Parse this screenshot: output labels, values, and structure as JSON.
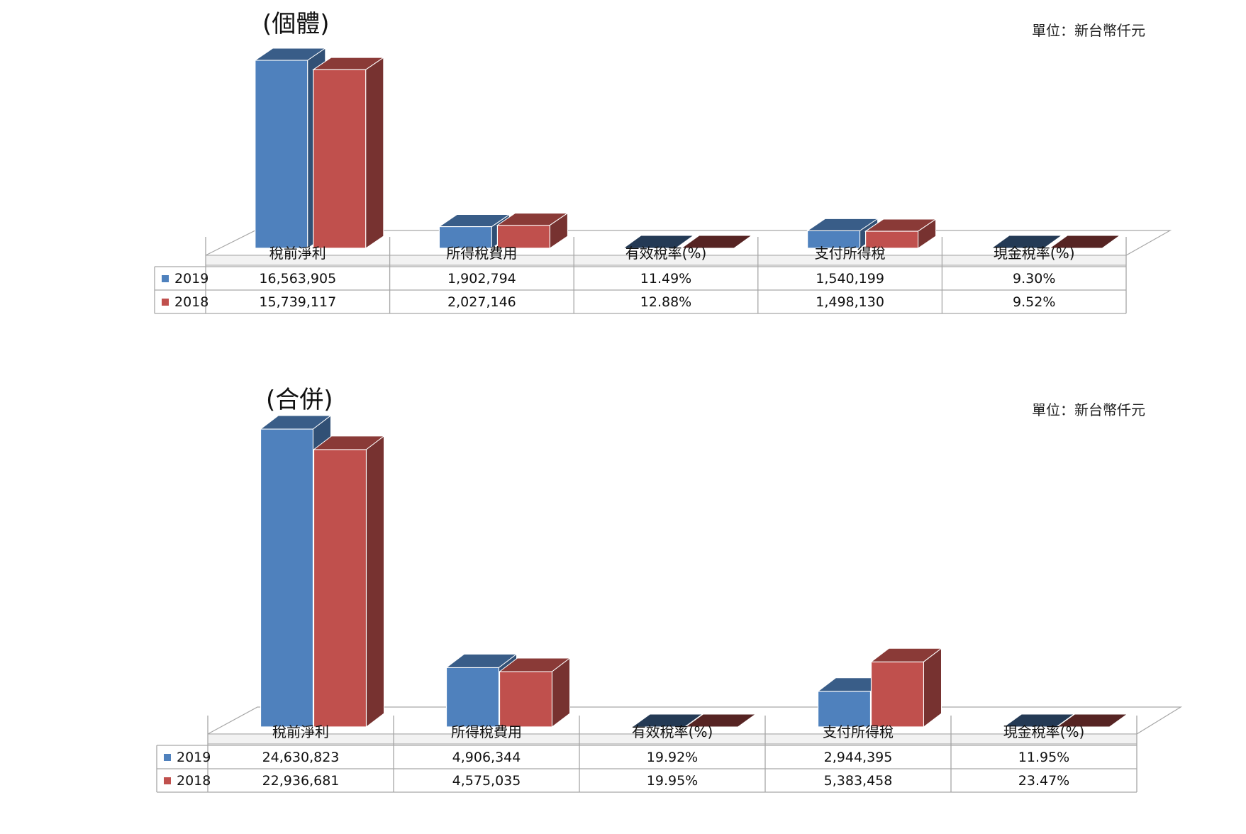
{
  "chart_data": [
    {
      "type": "bar",
      "title": "(個體)",
      "unit_label": "單位：新台幣仟元",
      "categories": [
        "稅前淨利",
        "所得稅費用",
        "有效稅率(%)",
        "支付所得稅",
        "現金稅率(%)"
      ],
      "series": [
        {
          "name": "2019",
          "color": "#4f81bd",
          "values": [
            16563905,
            1902794,
            11.49,
            1540199,
            9.3
          ],
          "labels": [
            "16,563,905",
            "1,902,794",
            "11.49%",
            "1,540,199",
            "9.30%"
          ]
        },
        {
          "name": "2018",
          "color": "#c0504d",
          "values": [
            15739117,
            2027146,
            12.88,
            1498130,
            9.52
          ],
          "labels": [
            "15,739,117",
            "2,027,146",
            "12.88%",
            "1,498,130",
            "9.52%"
          ]
        }
      ],
      "ylim": [
        0,
        17000000
      ],
      "legend": "data-table"
    },
    {
      "type": "bar",
      "title": "(合併)",
      "unit_label": "單位：新台幣仟元",
      "categories": [
        "稅前淨利",
        "所得稅費用",
        "有效稅率(%)",
        "支付所得稅",
        "現金稅率(%)"
      ],
      "series": [
        {
          "name": "2019",
          "color": "#4f81bd",
          "values": [
            24630823,
            4906344,
            19.92,
            2944395,
            11.95
          ],
          "labels": [
            "24,630,823",
            "4,906,344",
            "19.92%",
            "2,944,395",
            "11.95%"
          ]
        },
        {
          "name": "2018",
          "color": "#c0504d",
          "values": [
            22936681,
            4575035,
            19.95,
            5383458,
            23.47
          ],
          "labels": [
            "22,936,681",
            "4,575,035",
            "19.95%",
            "5,383,458",
            "23.47%"
          ]
        }
      ],
      "ylim": [
        0,
        24630823
      ],
      "legend": "data-table"
    }
  ]
}
